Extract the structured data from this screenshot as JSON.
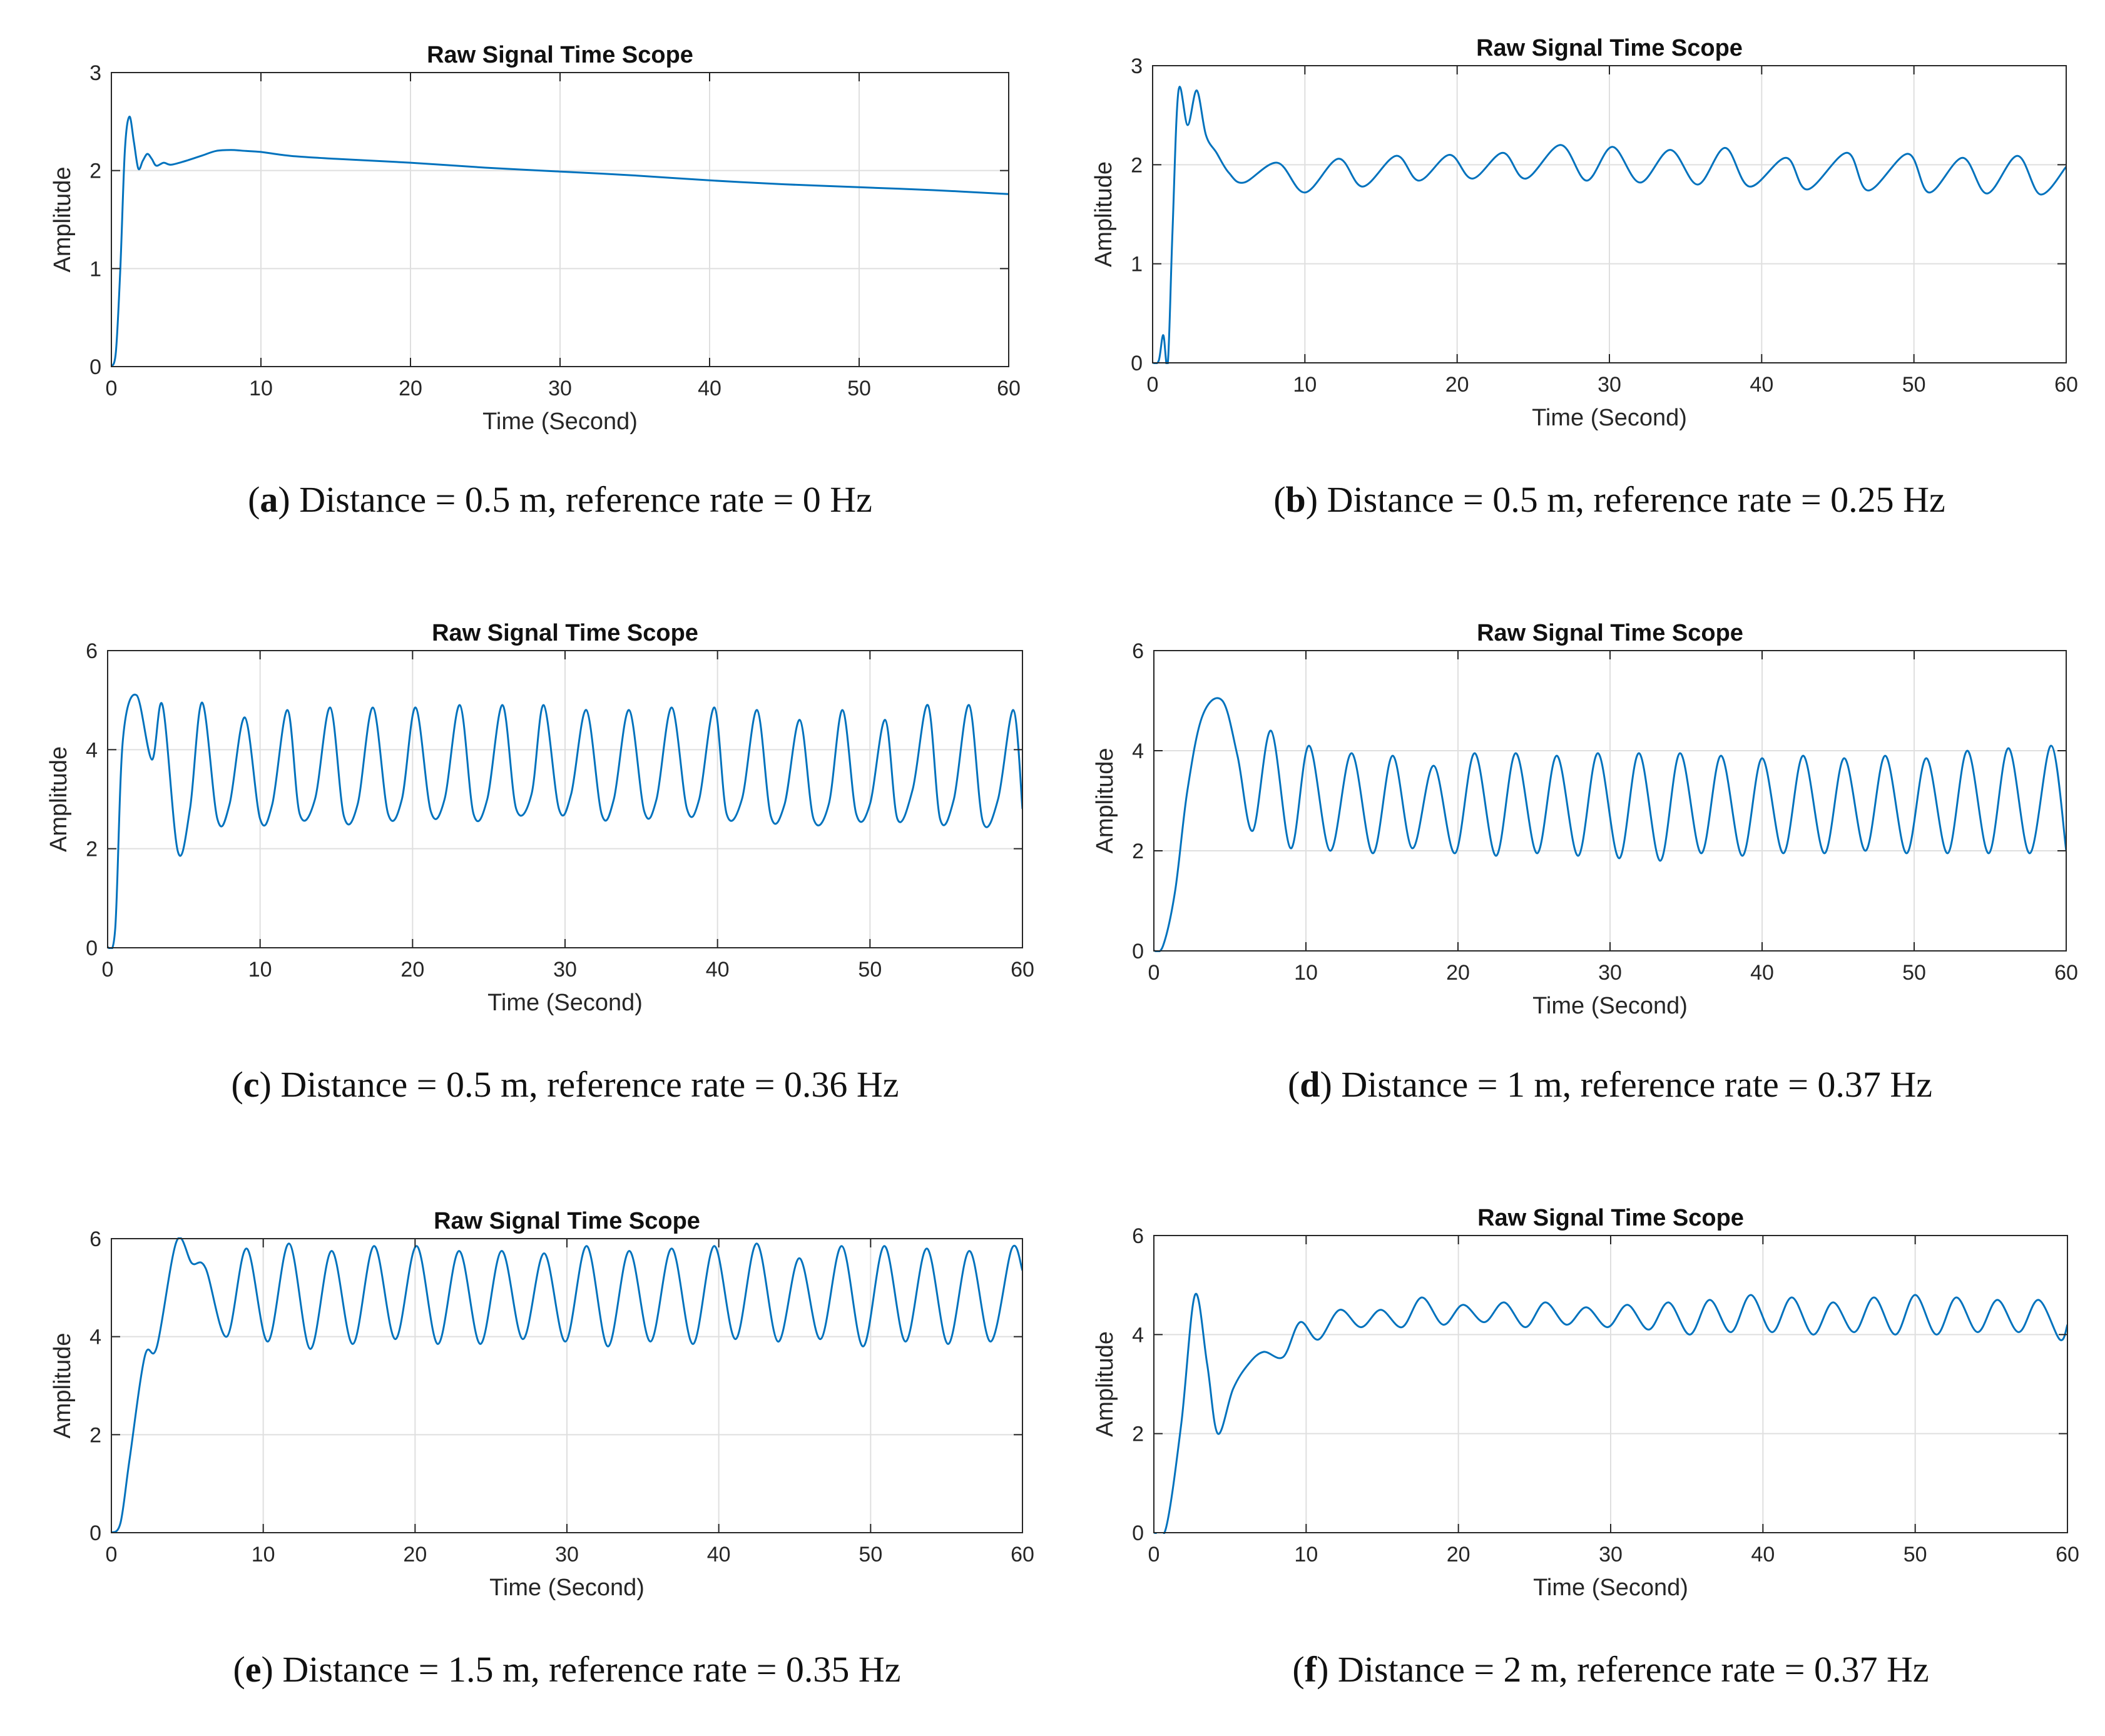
{
  "figure": {
    "panels": [
      {
        "id": "a",
        "letter": "a",
        "caption_text": "Distance = 0.5 m, reference rate = 0 Hz",
        "chart_data": {
          "type": "line",
          "title": "Raw Signal Time Scope",
          "xlabel": "Time (Second)",
          "ylabel": "Amplitude",
          "xlim": [
            0,
            60
          ],
          "ylim": [
            0,
            3
          ],
          "xticks": [
            0,
            10,
            20,
            30,
            40,
            50,
            60
          ],
          "yticks": [
            0,
            1,
            2,
            3
          ],
          "grid": true,
          "series": [
            {
              "name": "Raw signal",
              "color": "#0072BD",
              "x": [
                0,
                0.3,
                0.6,
                0.9,
                1.2,
                1.5,
                1.8,
                2.1,
                2.4,
                2.7,
                3.0,
                3.5,
                4.0,
                5,
                6,
                7,
                8,
                9,
                10,
                12,
                15,
                20,
                25,
                30,
                35,
                40,
                45,
                50,
                55,
                60
              ],
              "y": [
                0,
                0.15,
                1.0,
                2.2,
                2.55,
                2.3,
                2.02,
                2.1,
                2.17,
                2.12,
                2.05,
                2.08,
                2.06,
                2.1,
                2.15,
                2.2,
                2.21,
                2.2,
                2.19,
                2.15,
                2.12,
                2.08,
                2.03,
                1.99,
                1.95,
                1.9,
                1.86,
                1.83,
                1.8,
                1.76
              ]
            }
          ]
        }
      },
      {
        "id": "b",
        "letter": "b",
        "caption_text": "Distance = 0.5 m, reference rate = 0.25 Hz",
        "chart_data": {
          "type": "line",
          "title": "Raw Signal Time Scope",
          "xlabel": "Time (Second)",
          "ylabel": "Amplitude",
          "xlim": [
            0,
            60
          ],
          "ylim": [
            0,
            3
          ],
          "xticks": [
            0,
            10,
            20,
            30,
            40,
            50,
            60
          ],
          "yticks": [
            0,
            1,
            2,
            3
          ],
          "grid": true,
          "series": [
            {
              "name": "Raw signal",
              "color": "#0072BD",
              "x": [
                0,
                0.4,
                0.7,
                1.0,
                1.3,
                1.7,
                2.3,
                2.9,
                3.5,
                4.2,
                5.0,
                6.0,
                8.2,
                10.0,
                12.2,
                13.8,
                16.0,
                17.5,
                19.5,
                21.0,
                23.0,
                24.5,
                26.8,
                28.5,
                30.2,
                32.0,
                34.0,
                35.8,
                37.6,
                39.2,
                41.6,
                43.0,
                45.6,
                47.0,
                49.6,
                51.0,
                53.2,
                54.8,
                56.8,
                58.3,
                60.0
              ],
              "y": [
                0,
                0.02,
                0.28,
                0.0,
                1.3,
                2.75,
                2.4,
                2.75,
                2.3,
                2.12,
                1.92,
                1.82,
                2.02,
                1.72,
                2.06,
                1.78,
                2.09,
                1.84,
                2.1,
                1.86,
                2.12,
                1.86,
                2.2,
                1.84,
                2.18,
                1.82,
                2.15,
                1.8,
                2.17,
                1.78,
                2.07,
                1.75,
                2.12,
                1.74,
                2.11,
                1.72,
                2.07,
                1.71,
                2.09,
                1.7,
                1.98
              ]
            }
          ]
        }
      },
      {
        "id": "c",
        "letter": "c",
        "caption_text": "Distance = 0.5 m, reference rate = 0.36 Hz",
        "chart_data": {
          "type": "line",
          "title": "Raw Signal Time Scope",
          "xlabel": "Time (Second)",
          "ylabel": "Amplitude",
          "xlim": [
            0,
            60
          ],
          "ylim": [
            0,
            6
          ],
          "xticks": [
            0,
            10,
            20,
            30,
            40,
            50,
            60
          ],
          "yticks": [
            0,
            2,
            4,
            6
          ],
          "grid": true,
          "series": [
            {
              "name": "Raw signal",
              "color": "#0072BD",
              "x": [
                0,
                0.5,
                1.0,
                1.9,
                2.9,
                3.6,
                4.6,
                5.4,
                6.2,
                7.2,
                8.0,
                9.0,
                10.0,
                10.8,
                11.8,
                12.6,
                13.6,
                14.6,
                15.5,
                16.4,
                17.4,
                18.4,
                19.3,
                20.2,
                21.2,
                22.1,
                23.1,
                24.0,
                24.9,
                25.9,
                26.8,
                27.8,
                28.6,
                29.6,
                30.4,
                31.4,
                32.4,
                33.2,
                34.2,
                35.2,
                36.0,
                37.0,
                38.0,
                38.8,
                39.8,
                40.6,
                41.6,
                42.6,
                43.5,
                44.4,
                45.4,
                46.3,
                47.3,
                48.2,
                49.1,
                50.0,
                51.0,
                51.8,
                52.8,
                53.8,
                54.6,
                55.5,
                56.5,
                57.4,
                58.4,
                59.4,
                60.0
              ],
              "y": [
                0,
                0.4,
                4.2,
                5.1,
                3.8,
                4.9,
                1.95,
                2.8,
                4.95,
                2.6,
                2.9,
                4.65,
                2.6,
                2.9,
                4.8,
                2.7,
                3.0,
                4.85,
                2.65,
                2.9,
                4.85,
                2.7,
                3.0,
                4.85,
                2.75,
                3.0,
                4.9,
                2.7,
                3.0,
                4.9,
                2.8,
                3.1,
                4.9,
                2.8,
                3.1,
                4.8,
                2.7,
                3.0,
                4.8,
                2.75,
                3.0,
                4.85,
                2.8,
                3.0,
                4.85,
                2.7,
                3.0,
                4.8,
                2.65,
                2.9,
                4.6,
                2.6,
                2.9,
                4.8,
                2.7,
                2.9,
                4.6,
                2.6,
                3.2,
                4.9,
                2.6,
                3.0,
                4.9,
                2.55,
                3.0,
                4.8,
                2.8
              ]
            }
          ]
        }
      },
      {
        "id": "d",
        "letter": "d",
        "caption_text": "Distance = 1 m, reference rate = 0.37 Hz",
        "chart_data": {
          "type": "line",
          "title": "Raw Signal Time Scope",
          "xlabel": "Time (Second)",
          "ylabel": "Amplitude",
          "xlim": [
            0,
            60
          ],
          "ylim": [
            0,
            6
          ],
          "xticks": [
            0,
            10,
            20,
            30,
            40,
            50,
            60
          ],
          "yticks": [
            0,
            2,
            4,
            6
          ],
          "grid": true,
          "series": [
            {
              "name": "Raw signal",
              "color": "#0072BD",
              "x": [
                0,
                0.6,
                1.4,
                2.2,
                3.2,
                4.5,
                5.5,
                6.5,
                7.7,
                9.0,
                10.2,
                11.6,
                13.0,
                14.4,
                15.7,
                17.0,
                18.4,
                19.8,
                21.1,
                22.5,
                23.8,
                25.2,
                26.5,
                27.9,
                29.2,
                30.6,
                31.9,
                33.3,
                34.6,
                36.0,
                37.3,
                38.7,
                40.0,
                41.4,
                42.7,
                44.1,
                45.4,
                46.8,
                48.1,
                49.5,
                50.8,
                52.2,
                53.5,
                54.9,
                56.2,
                57.6,
                59.0,
                60.0
              ],
              "y": [
                0,
                0.1,
                1.2,
                3.2,
                4.7,
                5.0,
                3.9,
                2.4,
                4.4,
                2.05,
                4.1,
                2.0,
                3.95,
                1.95,
                3.9,
                2.05,
                3.7,
                1.95,
                3.95,
                1.9,
                3.95,
                1.95,
                3.9,
                1.9,
                3.95,
                1.85,
                3.95,
                1.8,
                3.95,
                1.95,
                3.9,
                1.9,
                3.85,
                1.95,
                3.9,
                1.95,
                3.85,
                2.0,
                3.9,
                1.95,
                3.85,
                1.95,
                4.0,
                1.95,
                4.05,
                1.95,
                4.1,
                2.0
              ]
            }
          ]
        }
      },
      {
        "id": "e",
        "letter": "e",
        "caption_text": "Distance = 1.5 m, reference rate = 0.35 Hz",
        "chart_data": {
          "type": "line",
          "title": "Raw Signal Time Scope",
          "xlabel": "Time (Second)",
          "ylabel": "Amplitude",
          "xlim": [
            0,
            60
          ],
          "ylim": [
            0,
            6
          ],
          "xticks": [
            0,
            10,
            20,
            30,
            40,
            50,
            60
          ],
          "yticks": [
            0,
            2,
            4,
            6
          ],
          "grid": true,
          "series": [
            {
              "name": "Raw signal",
              "color": "#0072BD",
              "x": [
                0,
                0.6,
                1.2,
                2.2,
                3.0,
                4.3,
                5.3,
                6.2,
                7.6,
                8.9,
                10.3,
                11.7,
                13.1,
                14.5,
                15.9,
                17.3,
                18.7,
                20.1,
                21.5,
                22.9,
                24.3,
                25.7,
                27.1,
                28.5,
                29.9,
                31.3,
                32.7,
                34.1,
                35.5,
                36.9,
                38.3,
                39.7,
                41.1,
                42.5,
                43.9,
                45.3,
                46.7,
                48.1,
                49.5,
                50.9,
                52.3,
                53.7,
                55.1,
                56.5,
                57.9,
                59.3,
                60.0
              ],
              "y": [
                0,
                0.2,
                1.5,
                3.6,
                3.8,
                5.95,
                5.5,
                5.4,
                4.0,
                5.8,
                3.9,
                5.9,
                3.75,
                5.75,
                3.85,
                5.85,
                3.95,
                5.85,
                3.85,
                5.75,
                3.85,
                5.75,
                3.95,
                5.7,
                3.9,
                5.85,
                3.8,
                5.75,
                3.9,
                5.8,
                3.85,
                5.85,
                3.95,
                5.9,
                3.9,
                5.6,
                3.95,
                5.85,
                3.8,
                5.85,
                3.9,
                5.8,
                3.85,
                5.75,
                3.9,
                5.8,
                5.35
              ]
            }
          ]
        }
      },
      {
        "id": "f",
        "letter": "f",
        "caption_text": "Distance = 2 m, reference rate = 0.37 Hz",
        "chart_data": {
          "type": "line",
          "title": "Raw Signal Time Scope",
          "xlabel": "Time (Second)",
          "ylabel": "Amplitude",
          "xlim": [
            0,
            60
          ],
          "ylim": [
            0,
            6
          ],
          "xticks": [
            0,
            10,
            20,
            30,
            40,
            50,
            60
          ],
          "yticks": [
            0,
            2,
            4,
            6
          ],
          "grid": true,
          "series": [
            {
              "name": "Raw signal",
              "color": "#0072BD",
              "x": [
                0,
                0.8,
                1.8,
                2.7,
                3.5,
                4.2,
                5.2,
                6.2,
                7.2,
                8.5,
                9.6,
                10.8,
                12.2,
                13.6,
                14.9,
                16.3,
                17.6,
                19.0,
                20.3,
                21.7,
                23.0,
                24.4,
                25.7,
                27.1,
                28.4,
                29.8,
                31.1,
                32.5,
                33.8,
                35.2,
                36.5,
                37.9,
                39.2,
                40.6,
                41.9,
                43.3,
                44.6,
                46.0,
                47.3,
                48.7,
                50.0,
                51.4,
                52.7,
                54.1,
                55.4,
                56.8,
                58.1,
                59.5,
                60.0
              ],
              "y": [
                0,
                0.1,
                2.2,
                4.8,
                3.4,
                2.0,
                2.9,
                3.4,
                3.65,
                3.55,
                4.25,
                3.9,
                4.5,
                4.15,
                4.5,
                4.15,
                4.75,
                4.2,
                4.6,
                4.25,
                4.65,
                4.15,
                4.65,
                4.2,
                4.55,
                4.15,
                4.6,
                4.1,
                4.65,
                4.0,
                4.7,
                4.05,
                4.8,
                4.05,
                4.75,
                4.0,
                4.65,
                4.05,
                4.75,
                4.0,
                4.8,
                4.0,
                4.75,
                4.05,
                4.7,
                4.05,
                4.7,
                3.9,
                4.2
              ]
            }
          ]
        }
      }
    ]
  }
}
